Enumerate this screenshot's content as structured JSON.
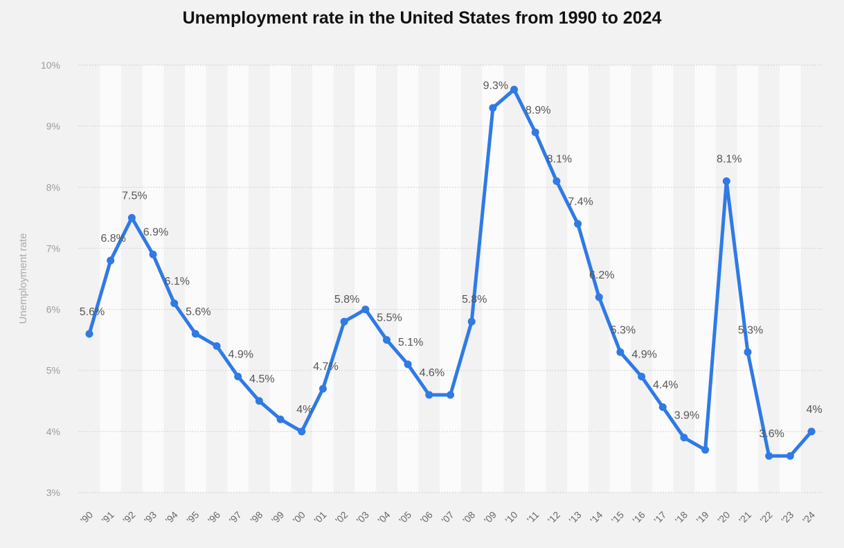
{
  "chart_data": {
    "type": "line",
    "title": "Unemployment rate in the United States from 1990 to 2024",
    "xlabel": "",
    "ylabel": "Unemployment rate",
    "ylim": [
      3,
      10
    ],
    "y_ticks": [
      "3%",
      "4%",
      "5%",
      "6%",
      "7%",
      "8%",
      "9%",
      "10%"
    ],
    "grid": true,
    "line_color": "#2f7ae5",
    "categories": [
      "'90",
      "'91",
      "'92",
      "'93",
      "'94",
      "'95",
      "'96",
      "'97",
      "'98",
      "'99",
      "'00",
      "'01",
      "'02",
      "'03",
      "'04",
      "'05",
      "'06",
      "'07",
      "'08",
      "'09",
      "'10",
      "'11",
      "'12",
      "'13",
      "'14",
      "'15",
      "'16",
      "'17",
      "'18",
      "'19",
      "'20",
      "'21",
      "'22",
      "'23",
      "'24"
    ],
    "series": [
      {
        "name": "Unemployment rate",
        "values": [
          5.6,
          6.8,
          7.5,
          6.9,
          6.1,
          5.6,
          5.4,
          4.9,
          4.5,
          4.2,
          4.0,
          4.7,
          5.8,
          6.0,
          5.5,
          5.1,
          4.6,
          4.6,
          5.8,
          9.3,
          9.6,
          8.9,
          8.1,
          7.4,
          6.2,
          5.3,
          4.9,
          4.4,
          3.9,
          3.7,
          8.1,
          5.3,
          3.6,
          3.6,
          4.0
        ],
        "labels": [
          "5.6%",
          "6.8%",
          "7.5%",
          "6.9%",
          "6.1%",
          "5.6%",
          null,
          "4.9%",
          "4.5%",
          null,
          "4%",
          "4.7%",
          "5.8%",
          null,
          "5.5%",
          "5.1%",
          "4.6%",
          null,
          "5.8%",
          "9.3%",
          null,
          "8.9%",
          "8.1%",
          "7.4%",
          "6.2%",
          "5.3%",
          "4.9%",
          "4.4%",
          "3.9%",
          null,
          "8.1%",
          "5.3%",
          "3.6%",
          null,
          "4%"
        ]
      }
    ]
  }
}
